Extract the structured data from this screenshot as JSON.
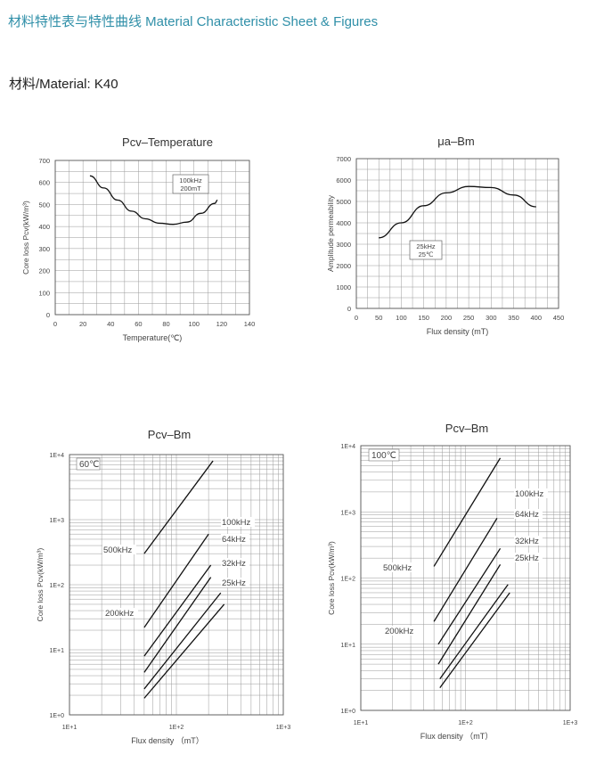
{
  "header": {
    "title": "材料特性表与特性曲线 Material Characteristic Sheet & Figures",
    "material": "材料/Material: K40"
  },
  "chart_data": [
    {
      "type": "line",
      "title": "Pcv–Temperature",
      "xlabel": "Temperature(℃)",
      "ylabel": "Core loss Pcv(kW/m³)",
      "xlim": [
        0,
        140
      ],
      "ylim": [
        0,
        700
      ],
      "xticks": [
        0,
        20,
        40,
        60,
        80,
        100,
        120,
        140
      ],
      "yticks": [
        0,
        100,
        200,
        300,
        400,
        500,
        600,
        700
      ],
      "annotation": [
        "100kHz",
        "200mT"
      ],
      "grid": true,
      "series": [
        {
          "x": [
            25,
            35,
            45,
            55,
            65,
            75,
            85,
            95,
            105,
            115,
            117
          ],
          "y": [
            630,
            575,
            520,
            470,
            435,
            415,
            410,
            420,
            460,
            505,
            520
          ]
        }
      ]
    },
    {
      "type": "line",
      "title": "μa–Bm",
      "xlabel": "Flux density (mT)",
      "ylabel": "Amplitude permeability",
      "xlim": [
        0,
        450
      ],
      "ylim": [
        0,
        7000
      ],
      "xticks": [
        0,
        50,
        100,
        150,
        200,
        250,
        300,
        350,
        400,
        450
      ],
      "yticks": [
        0,
        1000,
        2000,
        3000,
        4000,
        5000,
        6000,
        7000
      ],
      "annotation": [
        "25kHz",
        "25℃"
      ],
      "grid": true,
      "series": [
        {
          "x": [
            50,
            100,
            150,
            200,
            250,
            300,
            350,
            400
          ],
          "y": [
            3300,
            4000,
            4800,
            5400,
            5700,
            5650,
            5300,
            4750
          ]
        }
      ]
    },
    {
      "type": "line",
      "title": "Pcv–Bm",
      "xlabel": "Flux density （mT）",
      "ylabel": "Core loss Pcv(kW/m³)",
      "xscale": "log",
      "yscale": "log",
      "xlim": [
        10,
        1000
      ],
      "ylim": [
        1,
        10000
      ],
      "xticks": [
        "1E+1",
        "1E+2",
        "1E+3"
      ],
      "yticks": [
        "1E+0",
        "1E+1",
        "1E+2",
        "1E+3",
        "1E+4"
      ],
      "annotation": "60℃",
      "grid": true,
      "series": [
        {
          "name": "500kHz",
          "x": [
            50,
            220
          ],
          "y": [
            300,
            8000
          ]
        },
        {
          "name": "200kHz",
          "x": [
            50,
            200
          ],
          "y": [
            22,
            600
          ]
        },
        {
          "name": "100kHz",
          "x": [
            50,
            210
          ],
          "y": [
            8,
            200
          ]
        },
        {
          "name": "64kHz",
          "x": [
            50,
            210
          ],
          "y": [
            4.5,
            130
          ]
        },
        {
          "name": "32kHz",
          "x": [
            50,
            260
          ],
          "y": [
            2.5,
            75
          ]
        },
        {
          "name": "25kHz",
          "x": [
            50,
            280
          ],
          "y": [
            1.8,
            50
          ]
        }
      ]
    },
    {
      "type": "line",
      "title": "Pcv–Bm",
      "xlabel": "Flux density （mT）",
      "ylabel": "Core loss Pcv(kW/m³)",
      "xscale": "log",
      "yscale": "log",
      "xlim": [
        10,
        1000
      ],
      "ylim": [
        1,
        10000
      ],
      "xticks": [
        "1E+1",
        "1E+2",
        "1E+3"
      ],
      "yticks": [
        "1E+0",
        "1E+1",
        "1E+2",
        "1E+3",
        "1E+4"
      ],
      "annotation": "100℃",
      "grid": true,
      "series": [
        {
          "name": "500kHz",
          "x": [
            50,
            215
          ],
          "y": [
            150,
            6500
          ]
        },
        {
          "name": "200kHz",
          "x": [
            50,
            200
          ],
          "y": [
            22,
            800
          ]
        },
        {
          "name": "100kHz",
          "x": [
            55,
            215
          ],
          "y": [
            10,
            280
          ]
        },
        {
          "name": "64kHz",
          "x": [
            55,
            215
          ],
          "y": [
            5,
            160
          ]
        },
        {
          "name": "32kHz",
          "x": [
            57,
            255
          ],
          "y": [
            3,
            80
          ]
        },
        {
          "name": "25kHz",
          "x": [
            57,
            265
          ],
          "y": [
            2.2,
            60
          ]
        }
      ]
    }
  ]
}
